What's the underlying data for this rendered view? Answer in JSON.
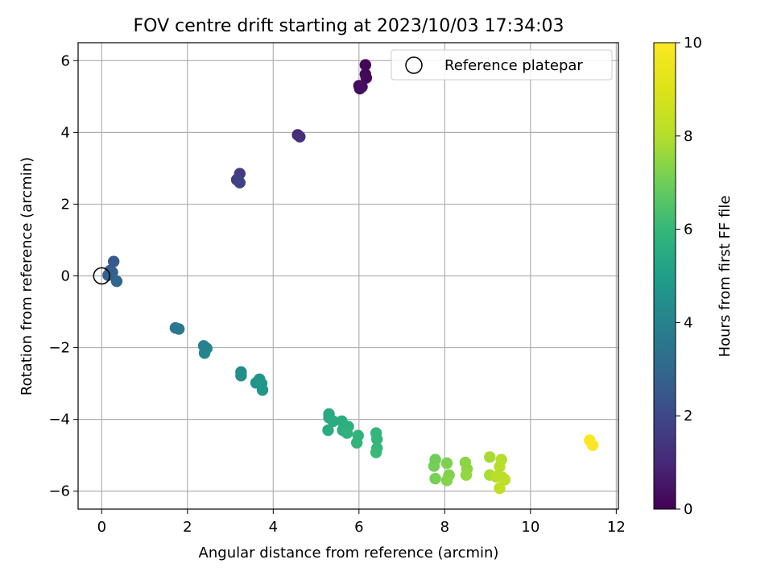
{
  "chart_data": {
    "type": "scatter",
    "title": "FOV centre drift starting at 2023/10/03 17:34:03",
    "xlabel": "Angular distance from reference (arcmin)",
    "ylabel": "Rotation from reference (arcmin)",
    "xlim": [
      -0.55,
      12.05
    ],
    "ylim": [
      -6.5,
      6.5
    ],
    "xticks": [
      0,
      2,
      4,
      6,
      8,
      10,
      12
    ],
    "yticks": [
      -6,
      -4,
      -2,
      0,
      2,
      4,
      6
    ],
    "grid": true,
    "legend": {
      "position": "top-right",
      "entries": [
        "Reference platepar"
      ]
    },
    "reference_point": {
      "x": 0,
      "y": 0,
      "marker": "open-circle"
    },
    "colorbar": {
      "label": "Hours from first FF file",
      "colormap": "viridis",
      "range": [
        0,
        10
      ],
      "ticks": [
        0,
        2,
        4,
        6,
        8,
        10
      ]
    },
    "points": [
      {
        "x": 6.15,
        "y": 5.88,
        "c": 0.1
      },
      {
        "x": 6.15,
        "y": 5.62,
        "c": 0.15
      },
      {
        "x": 6.17,
        "y": 5.52,
        "c": 0.2
      },
      {
        "x": 6.0,
        "y": 5.3,
        "c": 0.25
      },
      {
        "x": 6.02,
        "y": 5.22,
        "c": 0.3
      },
      {
        "x": 6.07,
        "y": 5.27,
        "c": 0.35
      },
      {
        "x": 4.57,
        "y": 3.93,
        "c": 1.1
      },
      {
        "x": 4.62,
        "y": 3.88,
        "c": 1.2
      },
      {
        "x": 3.22,
        "y": 2.85,
        "c": 1.6
      },
      {
        "x": 3.15,
        "y": 2.68,
        "c": 1.7
      },
      {
        "x": 3.22,
        "y": 2.6,
        "c": 1.8
      },
      {
        "x": 0.28,
        "y": 0.4,
        "c": 2.5
      },
      {
        "x": 0.2,
        "y": 0.15,
        "c": 2.6
      },
      {
        "x": 0.25,
        "y": 0.1,
        "c": 2.7
      },
      {
        "x": 0.15,
        "y": 0.02,
        "c": 2.8
      },
      {
        "x": 0.35,
        "y": -0.15,
        "c": 2.9
      },
      {
        "x": 1.72,
        "y": -1.45,
        "c": 3.5
      },
      {
        "x": 1.8,
        "y": -1.48,
        "c": 3.6
      },
      {
        "x": 2.38,
        "y": -1.95,
        "c": 4.0
      },
      {
        "x": 2.45,
        "y": -2.02,
        "c": 4.05
      },
      {
        "x": 2.4,
        "y": -2.15,
        "c": 4.1
      },
      {
        "x": 3.25,
        "y": -2.68,
        "c": 4.4
      },
      {
        "x": 3.25,
        "y": -2.78,
        "c": 4.45
      },
      {
        "x": 3.6,
        "y": -2.98,
        "c": 4.6
      },
      {
        "x": 3.68,
        "y": -2.88,
        "c": 4.65
      },
      {
        "x": 3.73,
        "y": -3.0,
        "c": 4.7
      },
      {
        "x": 3.75,
        "y": -3.18,
        "c": 4.75
      },
      {
        "x": 5.3,
        "y": -3.85,
        "c": 5.4
      },
      {
        "x": 5.3,
        "y": -3.95,
        "c": 5.45
      },
      {
        "x": 5.4,
        "y": -4.05,
        "c": 5.5
      },
      {
        "x": 5.28,
        "y": -4.3,
        "c": 5.55
      },
      {
        "x": 5.6,
        "y": -4.05,
        "c": 5.6
      },
      {
        "x": 5.62,
        "y": -4.3,
        "c": 5.65
      },
      {
        "x": 5.75,
        "y": -4.2,
        "c": 5.7
      },
      {
        "x": 5.72,
        "y": -4.38,
        "c": 5.75
      },
      {
        "x": 5.98,
        "y": -4.45,
        "c": 5.8
      },
      {
        "x": 5.95,
        "y": -4.65,
        "c": 5.85
      },
      {
        "x": 6.4,
        "y": -4.38,
        "c": 5.9
      },
      {
        "x": 6.42,
        "y": -4.55,
        "c": 5.95
      },
      {
        "x": 6.42,
        "y": -4.8,
        "c": 6.0
      },
      {
        "x": 6.4,
        "y": -4.92,
        "c": 6.05
      },
      {
        "x": 7.78,
        "y": -5.12,
        "c": 7.0
      },
      {
        "x": 7.75,
        "y": -5.3,
        "c": 7.05
      },
      {
        "x": 7.78,
        "y": -5.65,
        "c": 7.1
      },
      {
        "x": 8.05,
        "y": -5.22,
        "c": 7.2
      },
      {
        "x": 8.1,
        "y": -5.55,
        "c": 7.25
      },
      {
        "x": 8.05,
        "y": -5.7,
        "c": 7.3
      },
      {
        "x": 8.48,
        "y": -5.2,
        "c": 7.4
      },
      {
        "x": 8.52,
        "y": -5.38,
        "c": 7.45
      },
      {
        "x": 8.5,
        "y": -5.55,
        "c": 7.5
      },
      {
        "x": 9.05,
        "y": -5.05,
        "c": 7.8
      },
      {
        "x": 9.05,
        "y": -5.55,
        "c": 7.85
      },
      {
        "x": 9.32,
        "y": -5.12,
        "c": 8.0
      },
      {
        "x": 9.28,
        "y": -5.32,
        "c": 8.05
      },
      {
        "x": 9.2,
        "y": -5.6,
        "c": 8.1
      },
      {
        "x": 9.35,
        "y": -5.62,
        "c": 8.15
      },
      {
        "x": 9.4,
        "y": -5.68,
        "c": 8.2
      },
      {
        "x": 9.28,
        "y": -5.92,
        "c": 8.25
      },
      {
        "x": 11.38,
        "y": -4.58,
        "c": 9.9
      },
      {
        "x": 11.45,
        "y": -4.72,
        "c": 10.0
      }
    ]
  }
}
